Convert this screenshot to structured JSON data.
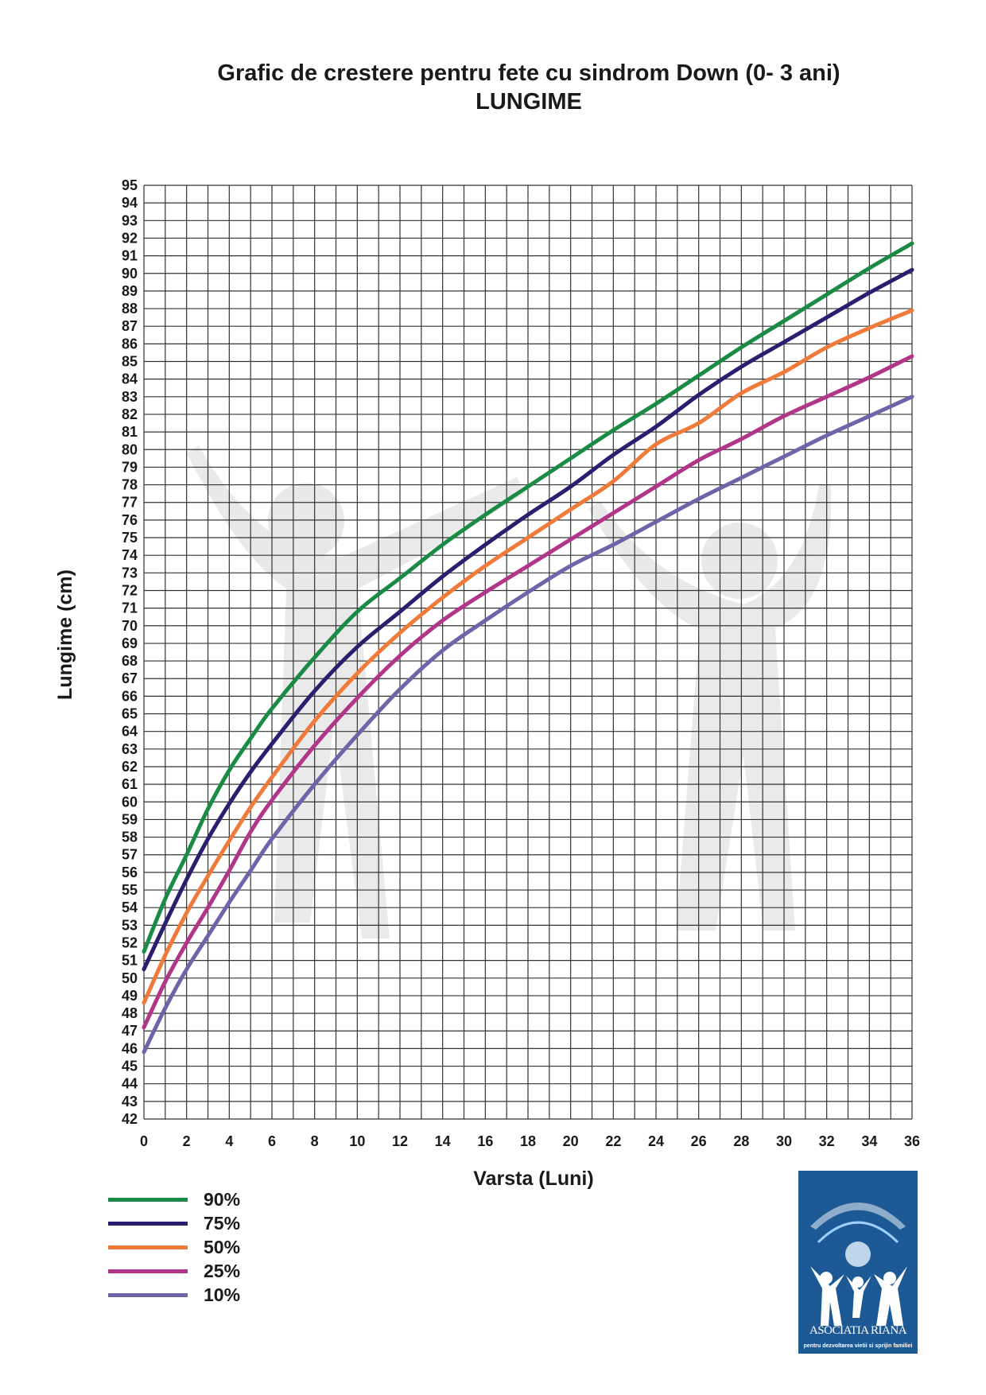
{
  "chart_data": {
    "type": "line",
    "title": "Grafic de crestere pentru fete cu sindrom Down (0- 3 ani)",
    "subtitle": "LUNGIME",
    "xlabel": "Varsta (Luni)",
    "ylabel": "Lungime (cm)",
    "xlim": [
      0,
      36
    ],
    "ylim": [
      42,
      95
    ],
    "x_ticks": [
      0,
      2,
      4,
      6,
      8,
      10,
      12,
      14,
      16,
      18,
      20,
      22,
      24,
      26,
      28,
      30,
      32,
      34,
      36
    ],
    "y_ticks": [
      42,
      43,
      44,
      45,
      46,
      47,
      48,
      49,
      50,
      51,
      52,
      53,
      54,
      55,
      56,
      57,
      58,
      59,
      60,
      61,
      62,
      63,
      64,
      65,
      66,
      67,
      68,
      69,
      70,
      71,
      72,
      73,
      74,
      75,
      76,
      77,
      78,
      79,
      80,
      81,
      82,
      83,
      84,
      85,
      86,
      87,
      88,
      89,
      90,
      91,
      92,
      93,
      94,
      95
    ],
    "grid": true,
    "legend_position": "bottom-left",
    "x": [
      0,
      1,
      2,
      3,
      4,
      5,
      6,
      8,
      10,
      12,
      14,
      16,
      18,
      20,
      22,
      24,
      26,
      28,
      30,
      32,
      34,
      36
    ],
    "series": [
      {
        "name": "90%",
        "color": "#1a8b45",
        "values": [
          51.5,
          54.5,
          57.0,
          59.6,
          61.8,
          63.6,
          65.3,
          68.2,
          70.8,
          72.7,
          74.6,
          76.3,
          77.9,
          79.5,
          81.1,
          82.6,
          84.2,
          85.8,
          87.3,
          88.8,
          90.3,
          91.7
        ]
      },
      {
        "name": "75%",
        "color": "#2a1e6e",
        "values": [
          50.5,
          53.1,
          55.6,
          57.9,
          59.9,
          61.7,
          63.3,
          66.3,
          68.8,
          70.8,
          72.8,
          74.6,
          76.3,
          77.9,
          79.7,
          81.3,
          83.1,
          84.7,
          86.1,
          87.5,
          88.9,
          90.2
        ]
      },
      {
        "name": "50%",
        "color": "#f07a3a",
        "values": [
          48.6,
          51.3,
          53.7,
          55.8,
          57.8,
          59.7,
          61.4,
          64.6,
          67.3,
          69.6,
          71.6,
          73.4,
          75.0,
          76.6,
          78.2,
          80.3,
          81.5,
          83.2,
          84.4,
          85.8,
          86.9,
          87.9
        ]
      },
      {
        "name": "25%",
        "color": "#b1368a",
        "values": [
          47.2,
          49.8,
          52.0,
          54.0,
          56.1,
          58.3,
          60.1,
          63.2,
          65.9,
          68.3,
          70.3,
          71.9,
          73.4,
          74.9,
          76.4,
          77.9,
          79.4,
          80.6,
          81.9,
          83.0,
          84.1,
          85.3
        ]
      },
      {
        "name": "10%",
        "color": "#6f64a8",
        "values": [
          45.8,
          48.3,
          50.5,
          52.4,
          54.3,
          56.1,
          57.9,
          61.0,
          63.8,
          66.4,
          68.6,
          70.3,
          71.9,
          73.4,
          74.6,
          75.9,
          77.2,
          78.4,
          79.6,
          80.8,
          81.9,
          83.0
        ]
      }
    ]
  },
  "logo": {
    "name": "ASOCIATIA RIANA",
    "tagline": "pentru dezvoltarea vietii si sprijin familiei",
    "color": "#1d5a95"
  }
}
